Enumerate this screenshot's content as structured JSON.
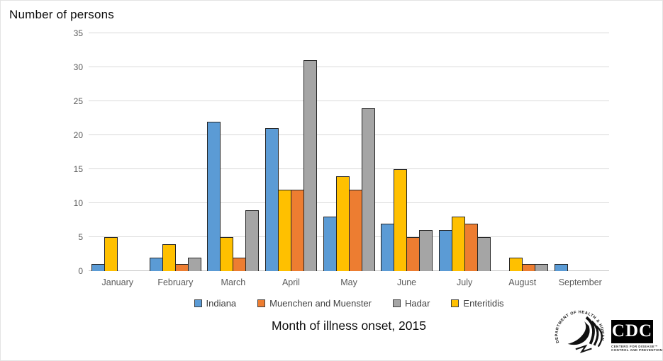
{
  "page_title": "Number of persons",
  "chart_data": {
    "type": "bar",
    "title": "Number of persons",
    "xlabel": "Month of illness onset, 2015",
    "ylabel": "Number of persons",
    "ylim": [
      0,
      35
    ],
    "ytick_labels": [
      "0",
      "5",
      "10",
      "15",
      "20",
      "25",
      "30",
      "35"
    ],
    "grid": "horizontal",
    "legend_position": "bottom",
    "categories": [
      "January",
      "February",
      "March",
      "April",
      "May",
      "June",
      "July",
      "August",
      "September"
    ],
    "series": [
      {
        "name": "Indiana",
        "color": "#5B9BD5",
        "values": [
          1,
          2,
          22,
          21,
          8,
          7,
          6,
          0,
          1
        ]
      },
      {
        "name": "Muenchen and Muenster",
        "color": "#ED7D31",
        "values": [
          0,
          1,
          2,
          12,
          12,
          5,
          7,
          1,
          0
        ]
      },
      {
        "name": "Hadar",
        "color": "#A5A5A5",
        "values": [
          0,
          2,
          9,
          31,
          24,
          6,
          5,
          1,
          0
        ]
      },
      {
        "name": "Enteritidis",
        "color": "#FFC000",
        "values": [
          5,
          4,
          5,
          12,
          14,
          15,
          8,
          2,
          0
        ]
      }
    ],
    "plot_order": [
      "Indiana",
      "Enteritidis",
      "Muenchen and Muenster",
      "Hadar"
    ]
  },
  "colors": {
    "gridline": "#d9d9d9",
    "axis_text": "#595959",
    "title_text": "#0d0d0d",
    "bar_border": "#262626"
  },
  "logos": {
    "hhs_arc_text": "DEPARTMENT OF HEALTH & HUMAN SERVICES USA",
    "cdc_text": "CDC",
    "cdc_sub_line1": "CENTERS FOR DISEASE™",
    "cdc_sub_line2": "CONTROL AND PREVENTION"
  }
}
